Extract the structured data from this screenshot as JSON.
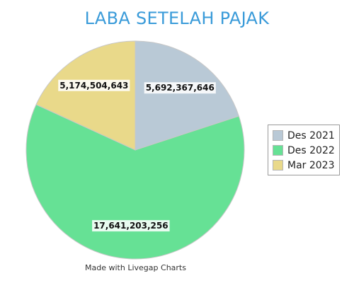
{
  "chart_data": {
    "type": "pie",
    "title": "LABA SETELAH PAJAK",
    "categories": [
      "Des 2021",
      "Des 2022",
      "Mar 2023"
    ],
    "values": [
      5692367646,
      17641203256,
      5174504643
    ],
    "value_labels": [
      "5,692,367,646",
      "17,641,203,256",
      "5,174,504,643"
    ],
    "colors": [
      "#b9c9d6",
      "#66e195",
      "#e9d98a"
    ],
    "legend_position": "right"
  },
  "footer": {
    "credit": "Made with Livegap Charts"
  }
}
